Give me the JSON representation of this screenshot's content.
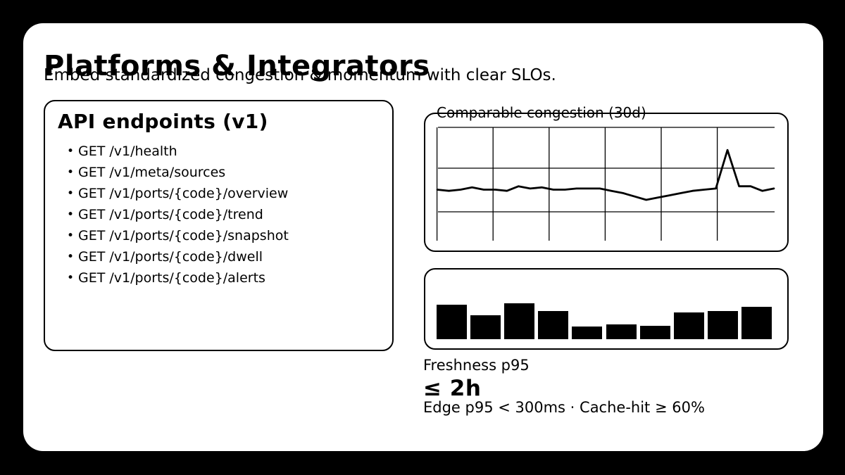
{
  "theme": {
    "background": "#000000",
    "card": "#ffffff",
    "ink": "#000000"
  },
  "header": {
    "title": "Platforms & Integrators",
    "subtitle": "Embed standardized congestion & momentum with clear SLOs."
  },
  "api_panel": {
    "title": "API endpoints (v1)",
    "bullet": "•",
    "endpoints": [
      "GET /v1/health",
      "GET /v1/meta/sources",
      "GET /v1/ports/{code}/overview",
      "GET /v1/ports/{code}/trend",
      "GET /v1/ports/{code}/snapshot",
      "GET /v1/ports/{code}/dwell",
      "GET /v1/ports/{code}/alerts"
    ]
  },
  "slo": {
    "label": "Freshness p95",
    "value": "≤ 2h",
    "detail": "Edge p95 < 300ms · Cache-hit ≥ 60%"
  },
  "chart_data": [
    {
      "id": "comparable-congestion",
      "type": "line",
      "title": "Comparable congestion (30d)",
      "xlabel": "",
      "ylabel": "",
      "x_span_days": 30,
      "ylim": [
        0,
        100
      ],
      "grid": {
        "shown": true,
        "vertical_lines": 6,
        "horizontal_lines": 3
      },
      "legend": "none",
      "values": [
        45,
        44,
        45,
        47,
        45,
        45,
        44,
        48,
        46,
        47,
        45,
        45,
        46,
        46,
        46,
        44,
        42,
        39,
        36,
        38,
        40,
        42,
        44,
        45,
        46,
        80,
        48,
        48,
        44,
        46
      ]
    },
    {
      "id": "freshness-bars",
      "type": "bar",
      "title": "",
      "xlabel": "",
      "ylabel": "",
      "ylim": [
        0,
        55
      ],
      "grid": {
        "shown": false
      },
      "legend": "none",
      "values": [
        49,
        34,
        51,
        40,
        18,
        21,
        19,
        38,
        40,
        46
      ]
    }
  ]
}
